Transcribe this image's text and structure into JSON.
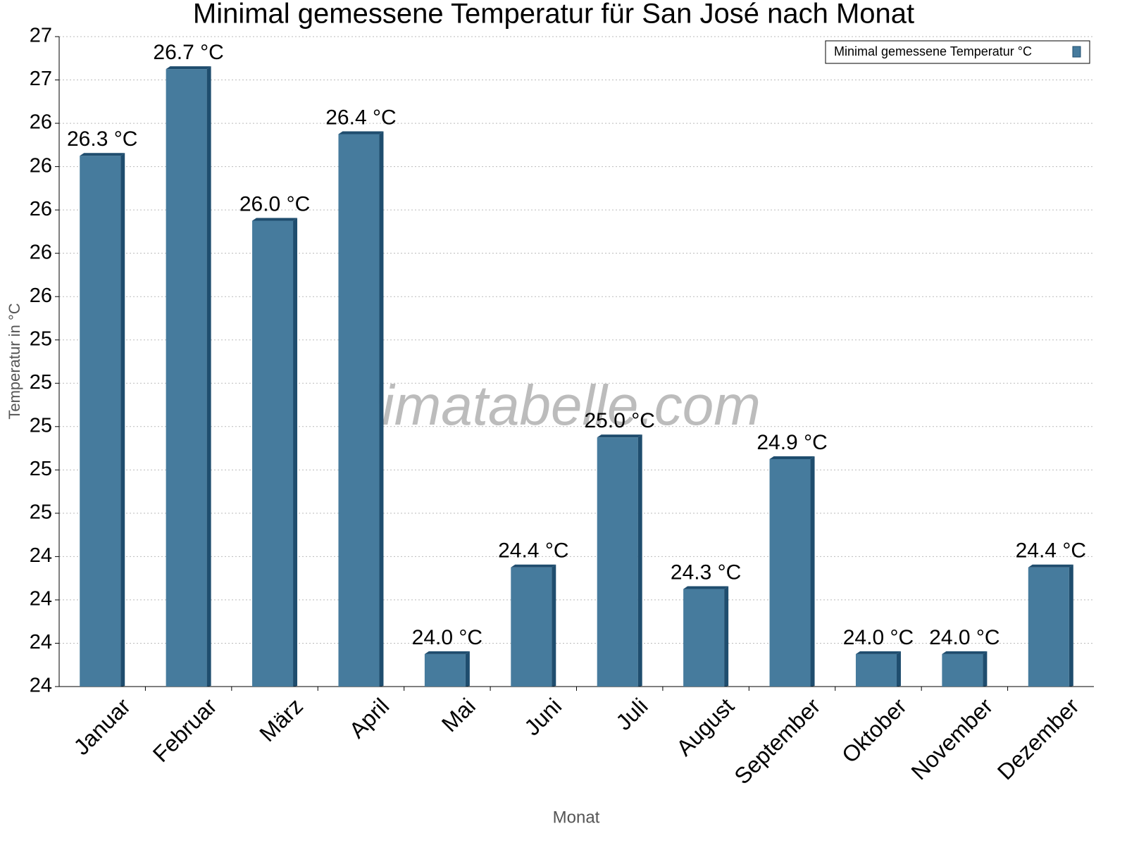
{
  "chart_data": {
    "type": "bar",
    "title": "Minimal gemessene Temperatur für San José nach Monat",
    "xlabel": "Monat",
    "ylabel": "Temperatur in °C",
    "watermark": "klimatabelle.com",
    "categories": [
      "Januar",
      "Februar",
      "März",
      "April",
      "Mai",
      "Juni",
      "Juli",
      "August",
      "September",
      "Oktober",
      "November",
      "Dezember"
    ],
    "series": [
      {
        "name": "Minimal gemessene Temperatur °C",
        "color": "#467b9d",
        "values": [
          26.3,
          26.7,
          26.0,
          26.4,
          24.0,
          24.4,
          25.0,
          24.3,
          24.9,
          24.0,
          24.0,
          24.4
        ],
        "value_labels": [
          "26.3 °C",
          "26.7 °C",
          "26.0 °C",
          "26.4 °C",
          "24.0 °C",
          "24.4 °C",
          "25.0 °C",
          "24.3 °C",
          "24.9 °C",
          "24.0 °C",
          "24.0 °C",
          "24.4 °C"
        ]
      }
    ],
    "ylim": [
      23.85,
      26.85
    ],
    "yticks": [
      {
        "value": 23.85,
        "label": "24"
      },
      {
        "value": 24.05,
        "label": "24"
      },
      {
        "value": 24.25,
        "label": "24"
      },
      {
        "value": 24.45,
        "label": "24"
      },
      {
        "value": 24.65,
        "label": "25"
      },
      {
        "value": 24.85,
        "label": "25"
      },
      {
        "value": 25.05,
        "label": "25"
      },
      {
        "value": 25.25,
        "label": "25"
      },
      {
        "value": 25.45,
        "label": "25"
      },
      {
        "value": 25.65,
        "label": "26"
      },
      {
        "value": 25.85,
        "label": "26"
      },
      {
        "value": 26.05,
        "label": "26"
      },
      {
        "value": 26.25,
        "label": "26"
      },
      {
        "value": 26.45,
        "label": "26"
      },
      {
        "value": 26.65,
        "label": "27"
      },
      {
        "value": 26.85,
        "label": "27"
      }
    ],
    "grid": true,
    "legend": "upper right"
  }
}
